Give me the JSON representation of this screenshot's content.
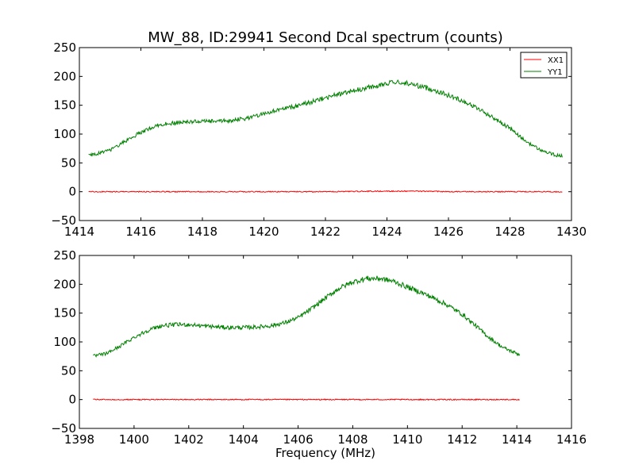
{
  "chart_data": [
    {
      "type": "line",
      "title": "MW_88, ID:29941 Second Dcal spectrum (counts)",
      "xlabel": "",
      "ylabel": "",
      "xlim": [
        1414,
        1430
      ],
      "ylim": [
        -50,
        250
      ],
      "xticks": [
        "1414",
        "1416",
        "1418",
        "1420",
        "1422",
        "1424",
        "1426",
        "1428",
        "1430"
      ],
      "yticks": [
        "−50",
        "0",
        "50",
        "100",
        "150",
        "200",
        "250"
      ],
      "legend": {
        "position": "top-right"
      },
      "series": [
        {
          "name": "XX1",
          "color": "#ff0000",
          "x": [
            1414.3,
            1416,
            1418,
            1420,
            1422,
            1424,
            1425,
            1426,
            1428,
            1429.7
          ],
          "y": [
            0,
            0,
            0,
            0,
            0,
            1,
            1,
            0,
            0,
            0
          ]
        },
        {
          "name": "YY1",
          "color": "#008000",
          "x": [
            1414.3,
            1414.5,
            1415,
            1415.5,
            1416,
            1416.5,
            1417,
            1417.5,
            1418,
            1418.5,
            1419,
            1419.5,
            1420,
            1420.5,
            1421,
            1421.5,
            1422,
            1422.5,
            1423,
            1423.5,
            1424,
            1424.5,
            1425,
            1425.5,
            1426,
            1426.5,
            1427,
            1427.5,
            1428,
            1428.5,
            1429,
            1429.5,
            1429.7
          ],
          "y": [
            63,
            65,
            72,
            88,
            103,
            115,
            119,
            121,
            122,
            122,
            124,
            128,
            136,
            142,
            148,
            155,
            163,
            170,
            176,
            182,
            188,
            190,
            184,
            177,
            167,
            157,
            143,
            127,
            110,
            88,
            72,
            63,
            62
          ]
        }
      ]
    },
    {
      "type": "line",
      "title": "",
      "xlabel": "Frequency (MHz)",
      "ylabel": "",
      "xlim": [
        1398,
        1416
      ],
      "ylim": [
        -50,
        250
      ],
      "xticks": [
        "1398",
        "1400",
        "1402",
        "1404",
        "1406",
        "1408",
        "1410",
        "1412",
        "1414",
        "1416"
      ],
      "yticks": [
        "−50",
        "0",
        "50",
        "100",
        "150",
        "200",
        "250"
      ],
      "series": [
        {
          "name": "XX1",
          "color": "#ff0000",
          "x": [
            1398.5,
            1400,
            1402,
            1404,
            1406,
            1408,
            1410,
            1412,
            1414.1
          ],
          "y": [
            0,
            0,
            0,
            0,
            0,
            0,
            0,
            0,
            0
          ]
        },
        {
          "name": "YY1",
          "color": "#008000",
          "x": [
            1398.5,
            1399,
            1399.5,
            1400,
            1400.5,
            1401,
            1401.5,
            1402,
            1402.5,
            1403,
            1403.5,
            1404,
            1404.5,
            1405,
            1405.5,
            1406,
            1406.5,
            1407,
            1407.5,
            1408,
            1408.5,
            1409,
            1409.5,
            1410,
            1410.5,
            1411,
            1411.5,
            1412,
            1412.5,
            1413,
            1413.5,
            1414.1
          ],
          "y": [
            75,
            80,
            93,
            108,
            120,
            128,
            130,
            130,
            128,
            126,
            125,
            125,
            126,
            128,
            133,
            142,
            158,
            176,
            193,
            204,
            210,
            210,
            205,
            195,
            186,
            175,
            163,
            148,
            128,
            107,
            90,
            78
          ]
        }
      ]
    }
  ]
}
